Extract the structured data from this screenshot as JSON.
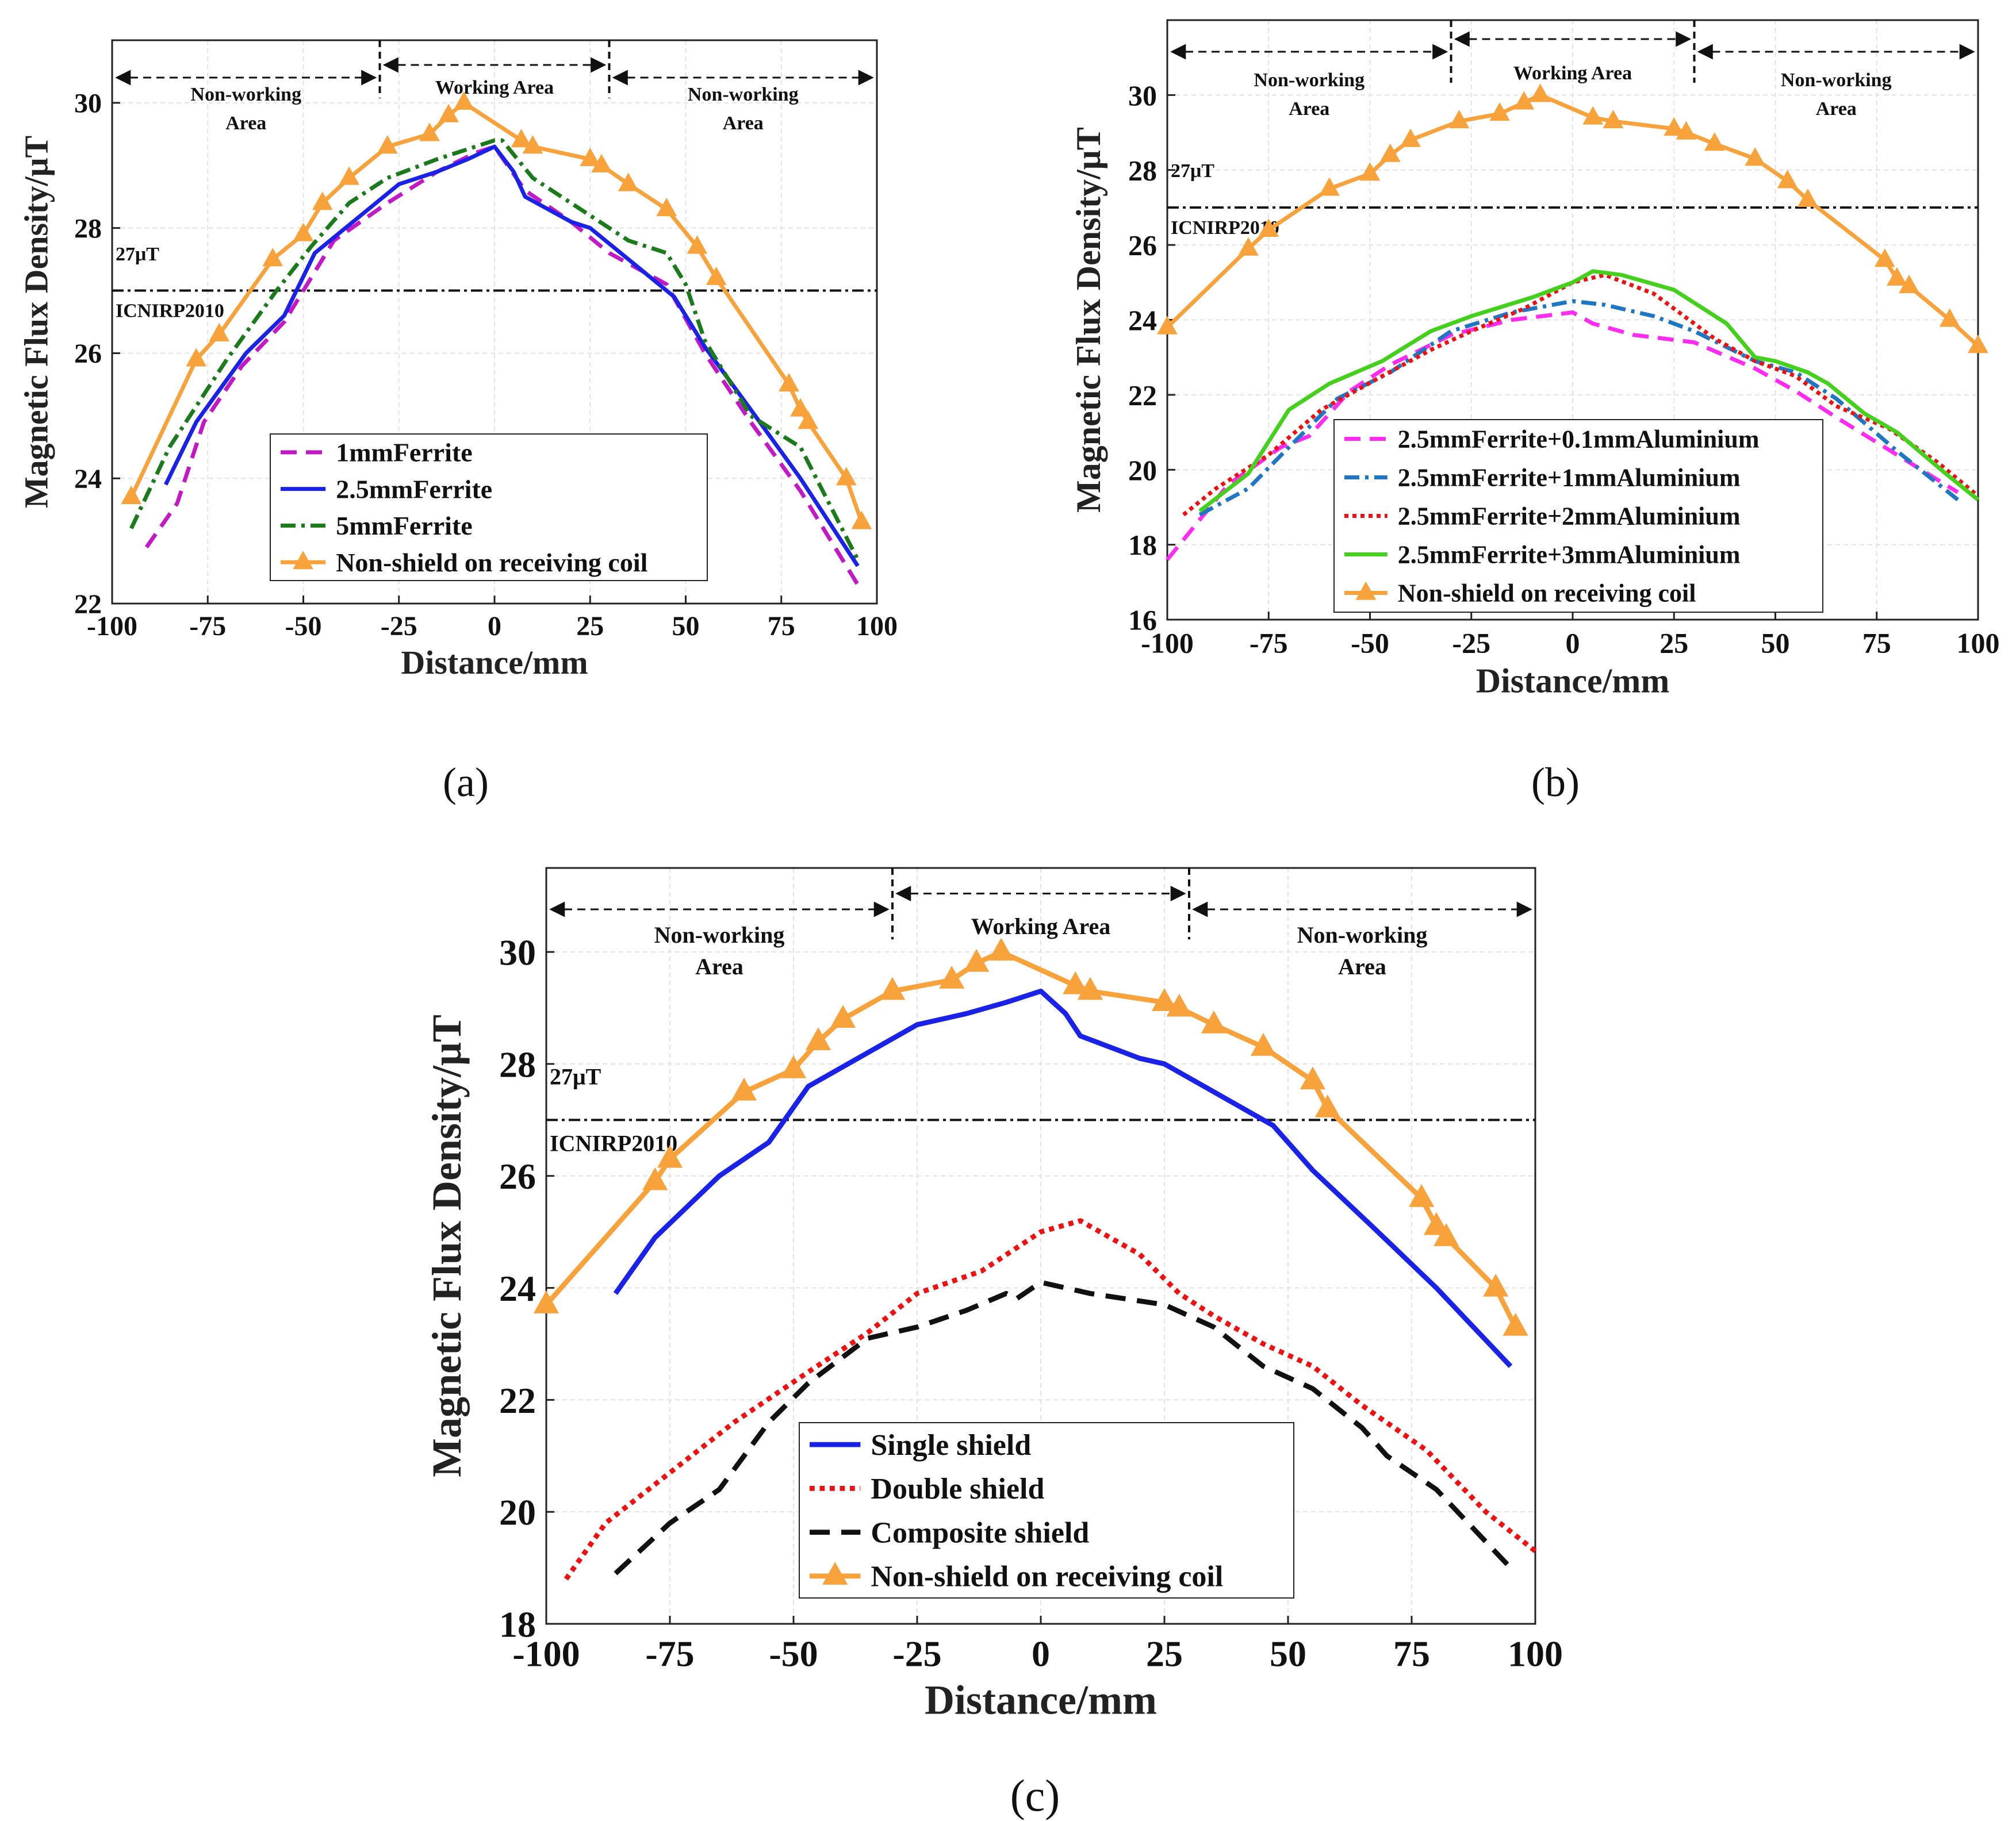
{
  "colors": {
    "nonshield": "#F7A23B",
    "ferrite1": "#C218C6",
    "ferrite25": "#1A22E8",
    "ferrite5": "#1B7A1B",
    "al01": "#FF2BF0",
    "al1": "#1F77C4",
    "al2": "#EE1111",
    "al3": "#44D01C",
    "single": "#1A22E8",
    "double": "#EE1111",
    "composite": "#111111",
    "threshold": "#111111",
    "grid": "#E2E2E2"
  },
  "chart_data": [
    {
      "id": "a",
      "type": "line",
      "panel_label": "(a)",
      "title": "",
      "xlabel": "Distance/mm",
      "ylabel": "Magnetic Flux Density/μT",
      "xlim": [
        -100,
        100
      ],
      "ylim": [
        22,
        31
      ],
      "xticks": [
        -100,
        -75,
        -50,
        -25,
        0,
        25,
        50,
        75,
        100
      ],
      "yticks": [
        22,
        24,
        26,
        28,
        30
      ],
      "threshold": {
        "value": 27,
        "label": "27μT",
        "source": "ICNIRP2010"
      },
      "regions": [
        {
          "label": "Non-working\nArea",
          "from": -100,
          "to": -30
        },
        {
          "label": "Working Area",
          "from": -30,
          "to": 30
        },
        {
          "label": "Non-working\nArea",
          "from": 30,
          "to": 100
        }
      ],
      "legend": "lower-center",
      "series": [
        {
          "name": "1mmFerrite",
          "color": "ferrite1",
          "style": "dash",
          "x": [
            -91,
            -83,
            -76,
            -66,
            -55,
            -48,
            -42,
            -28,
            -15,
            -5,
            0,
            8,
            20,
            30,
            45,
            55,
            67,
            80,
            95
          ],
          "y": [
            22.9,
            23.6,
            24.9,
            25.8,
            26.5,
            27.2,
            27.8,
            28.4,
            28.9,
            29.2,
            29.3,
            28.6,
            28.1,
            27.6,
            27.1,
            26.0,
            24.9,
            23.8,
            22.3
          ]
        },
        {
          "name": "2.5mmFerrite",
          "color": "ferrite25",
          "style": "solid",
          "x": [
            -86,
            -78,
            -65,
            -55,
            -47,
            -37,
            -25,
            -15,
            -7,
            0,
            5,
            8,
            20,
            25,
            35,
            47,
            55,
            67,
            80,
            95
          ],
          "y": [
            23.9,
            24.9,
            26.0,
            26.6,
            27.6,
            28.1,
            28.7,
            28.9,
            29.1,
            29.3,
            28.9,
            28.5,
            28.1,
            28.0,
            27.5,
            26.9,
            26.1,
            25.1,
            24.0,
            22.6
          ]
        },
        {
          "name": "5mmFerrite",
          "color": "ferrite5",
          "style": "dashdot",
          "x": [
            -95,
            -85,
            -70,
            -57,
            -48,
            -38,
            -28,
            -15,
            -5,
            0,
            2,
            10,
            25,
            35,
            45,
            50,
            55,
            67,
            80,
            95
          ],
          "y": [
            23.2,
            24.5,
            25.9,
            27.0,
            27.7,
            28.4,
            28.8,
            29.1,
            29.3,
            29.4,
            29.4,
            28.8,
            28.2,
            27.8,
            27.6,
            27.1,
            26.2,
            25.0,
            24.5,
            22.7
          ]
        },
        {
          "name": "Non-shield on receiving coil",
          "color": "nonshield",
          "style": "solid-triangle",
          "x": [
            -95,
            -78,
            -72,
            -58,
            -50,
            -45,
            -38,
            -28,
            -17,
            -12,
            -8,
            7,
            10,
            25,
            28,
            35,
            45,
            53,
            58,
            77,
            80,
            82,
            92,
            96
          ],
          "y": [
            23.7,
            25.9,
            26.3,
            27.5,
            27.9,
            28.4,
            28.8,
            29.3,
            29.5,
            29.8,
            30.0,
            29.4,
            29.3,
            29.1,
            29.0,
            28.7,
            28.3,
            27.7,
            27.2,
            25.5,
            25.1,
            24.9,
            24.0,
            23.3
          ]
        }
      ]
    },
    {
      "id": "b",
      "type": "line",
      "panel_label": "(b)",
      "title": "",
      "xlabel": "Distance/mm",
      "ylabel": "Magnetic Flux Density/μT",
      "xlim": [
        -100,
        100
      ],
      "ylim": [
        16,
        32
      ],
      "xticks": [
        -100,
        -75,
        -50,
        -25,
        0,
        25,
        50,
        75,
        100
      ],
      "yticks": [
        16,
        18,
        20,
        22,
        24,
        26,
        28,
        30
      ],
      "threshold": {
        "value": 27,
        "label": "27μT",
        "source": "ICNIRP2010"
      },
      "regions": [
        {
          "label": "Non-working\nArea",
          "from": -100,
          "to": -30
        },
        {
          "label": "Working Area",
          "from": -30,
          "to": 30
        },
        {
          "label": "Non-working\nArea",
          "from": 30,
          "to": 100
        }
      ],
      "legend": "lower-center",
      "series": [
        {
          "name": "2.5mmFerrite+0.1mmAluminium",
          "color": "al01",
          "style": "dash",
          "x": [
            -100,
            -85,
            -72,
            -65,
            -55,
            -45,
            -30,
            -15,
            0,
            5,
            15,
            30,
            45,
            55,
            65,
            80,
            95
          ],
          "y": [
            17.6,
            19.6,
            20.6,
            20.9,
            22.1,
            22.8,
            23.6,
            24.0,
            24.2,
            23.9,
            23.6,
            23.4,
            22.7,
            22.1,
            21.4,
            20.4,
            19.4
          ]
        },
        {
          "name": "2.5mmFerrite+1mmAluminium",
          "color": "al1",
          "style": "dashdot",
          "x": [
            -92,
            -80,
            -70,
            -58,
            -45,
            -30,
            -15,
            0,
            8,
            20,
            30,
            45,
            55,
            65,
            80,
            95
          ],
          "y": [
            18.8,
            19.5,
            20.6,
            21.9,
            22.6,
            23.7,
            24.2,
            24.5,
            24.4,
            24.1,
            23.7,
            22.9,
            22.6,
            21.9,
            20.5,
            19.2
          ]
        },
        {
          "name": "2.5mmFerrite+2mmAluminium",
          "color": "al2",
          "style": "dot",
          "x": [
            -96,
            -88,
            -75,
            -62,
            -47,
            -35,
            -25,
            -12,
            0,
            8,
            20,
            35,
            45,
            55,
            65,
            78,
            90,
            100
          ],
          "y": [
            18.8,
            19.5,
            20.4,
            21.6,
            22.5,
            23.2,
            23.7,
            24.3,
            25.0,
            25.2,
            24.7,
            23.5,
            22.9,
            22.5,
            21.7,
            21.1,
            20.2,
            19.3
          ]
        },
        {
          "name": "2.5mmFerrite+3mmAluminium",
          "color": "al3",
          "style": "solid",
          "x": [
            -92,
            -80,
            -70,
            -60,
            -47,
            -35,
            -25,
            -10,
            0,
            5,
            12,
            25,
            38,
            45,
            50,
            58,
            63,
            72,
            80,
            92,
            100
          ],
          "y": [
            18.9,
            19.9,
            21.6,
            22.3,
            22.9,
            23.7,
            24.1,
            24.6,
            25.0,
            25.3,
            25.2,
            24.8,
            23.9,
            23.0,
            22.9,
            22.6,
            22.3,
            21.5,
            21.0,
            19.9,
            19.2
          ]
        },
        {
          "name": "Non-shield on receiving coil",
          "color": "nonshield",
          "style": "solid-triangle",
          "x": [
            -100,
            -80,
            -75,
            -60,
            -50,
            -45,
            -40,
            -28,
            -18,
            -12,
            -8,
            5,
            10,
            25,
            28,
            35,
            45,
            53,
            58,
            77,
            80,
            83,
            93,
            100
          ],
          "y": [
            23.8,
            25.9,
            26.4,
            27.5,
            27.9,
            28.4,
            28.8,
            29.3,
            29.5,
            29.8,
            30.0,
            29.4,
            29.3,
            29.1,
            29.0,
            28.7,
            28.3,
            27.7,
            27.2,
            25.6,
            25.1,
            24.9,
            24.0,
            23.3
          ]
        }
      ]
    },
    {
      "id": "c",
      "type": "line",
      "panel_label": "(c)",
      "title": "",
      "xlabel": "Distance/mm",
      "ylabel": "Magnetic Flux Density/μT",
      "xlim": [
        -100,
        100
      ],
      "ylim": [
        18,
        31.5
      ],
      "xticks": [
        -100,
        -75,
        -50,
        -25,
        0,
        25,
        50,
        75,
        100
      ],
      "yticks": [
        18,
        20,
        22,
        24,
        26,
        28,
        30
      ],
      "threshold": {
        "value": 27,
        "label": "27μT",
        "source": "ICNIRP2010"
      },
      "regions": [
        {
          "label": "Non-working\nArea",
          "from": -100,
          "to": -30
        },
        {
          "label": "Working Area",
          "from": -30,
          "to": 30
        },
        {
          "label": "Non-working\nArea",
          "from": 30,
          "to": 100
        }
      ],
      "legend": "lower-left",
      "series": [
        {
          "name": "Single shield",
          "color": "single",
          "style": "solid",
          "x": [
            -86,
            -78,
            -65,
            -55,
            -47,
            -37,
            -25,
            -15,
            -7,
            0,
            5,
            8,
            20,
            25,
            35,
            47,
            55,
            67,
            80,
            95
          ],
          "y": [
            23.9,
            24.9,
            26.0,
            26.6,
            27.6,
            28.1,
            28.7,
            28.9,
            29.1,
            29.3,
            28.9,
            28.5,
            28.1,
            28.0,
            27.5,
            26.9,
            26.1,
            25.1,
            24.0,
            22.6
          ]
        },
        {
          "name": "Double shield",
          "color": "double",
          "style": "dot",
          "x": [
            -96,
            -88,
            -75,
            -62,
            -47,
            -35,
            -25,
            -12,
            0,
            8,
            20,
            28,
            35,
            45,
            55,
            65,
            78,
            90,
            100
          ],
          "y": [
            18.8,
            19.8,
            20.7,
            21.6,
            22.5,
            23.2,
            23.9,
            24.3,
            25.0,
            25.2,
            24.6,
            23.9,
            23.5,
            23.0,
            22.6,
            21.9,
            21.1,
            20.0,
            19.3
          ]
        },
        {
          "name": "Composite shield",
          "color": "composite",
          "style": "dash",
          "x": [
            -86,
            -75,
            -65,
            -55,
            -47,
            -35,
            -25,
            -15,
            -7,
            -5,
            0,
            10,
            25,
            35,
            45,
            55,
            65,
            70,
            80,
            95
          ],
          "y": [
            18.9,
            19.8,
            20.4,
            21.6,
            22.3,
            23.1,
            23.3,
            23.6,
            23.9,
            23.8,
            24.1,
            23.9,
            23.7,
            23.3,
            22.6,
            22.2,
            21.5,
            21.0,
            20.4,
            19.0
          ]
        },
        {
          "name": "Non-shield on receiving coil",
          "color": "nonshield",
          "style": "solid-triangle",
          "x": [
            -100,
            -78,
            -75,
            -60,
            -50,
            -45,
            -40,
            -30,
            -18,
            -13,
            -8,
            7,
            10,
            25,
            28,
            35,
            45,
            55,
            58,
            77,
            80,
            82,
            92,
            96
          ],
          "y": [
            23.7,
            25.9,
            26.3,
            27.5,
            27.9,
            28.4,
            28.8,
            29.3,
            29.5,
            29.8,
            30.0,
            29.4,
            29.3,
            29.1,
            29.0,
            28.7,
            28.3,
            27.7,
            27.2,
            25.6,
            25.1,
            24.9,
            24.0,
            23.3
          ]
        }
      ]
    }
  ]
}
